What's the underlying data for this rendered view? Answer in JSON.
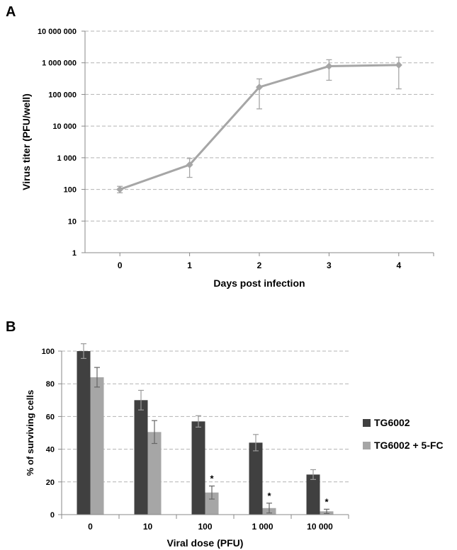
{
  "panels": {
    "a_label": "A",
    "b_label": "B"
  },
  "chart_data": [
    {
      "type": "line",
      "panel": "A",
      "xlabel": "Days post infection",
      "ylabel": "Virus titer  (PFU/well)",
      "yscale": "log",
      "ylim": [
        1,
        10000000
      ],
      "xlim": [
        -0.5,
        4.5
      ],
      "grid": true,
      "x_ticks": [
        0,
        1,
        2,
        3,
        4
      ],
      "x_tick_labels": [
        "0",
        "1",
        "2",
        "3",
        "4"
      ],
      "y_ticks": [
        1,
        10,
        100,
        1000,
        10000,
        100000,
        1000000,
        10000000
      ],
      "y_tick_labels": [
        "1",
        "10",
        "100",
        "1 000",
        "10 000",
        "100 000",
        "1 000 000",
        "10 000 000"
      ],
      "color": "#a6a6a6",
      "series": [
        {
          "x": [
            0,
            1,
            2,
            3,
            4
          ],
          "y": [
            100,
            600,
            170000,
            780000,
            850000
          ],
          "err_low": [
            78,
            240,
            35000,
            280000,
            150000
          ],
          "err_high": [
            125,
            950,
            310000,
            1250000,
            1500000
          ]
        }
      ]
    },
    {
      "type": "bar",
      "panel": "B",
      "xlabel": "Viral dose (PFU)",
      "ylabel": "% of surviving cells",
      "ylim": [
        0,
        100
      ],
      "grid": true,
      "legend_position": "right",
      "categories": [
        "0",
        "10",
        "100",
        "1 000",
        "10 000"
      ],
      "y_ticks": [
        0,
        20,
        40,
        60,
        80,
        100
      ],
      "series": [
        {
          "name": "TG6002",
          "color": "#404040",
          "values": [
            100,
            70,
            57,
            44,
            24.5
          ],
          "errors": [
            4.5,
            6,
            3.5,
            5,
            3
          ],
          "annotations": [
            "",
            "",
            "",
            "",
            ""
          ]
        },
        {
          "name": "TG6002 + 5-FC",
          "color": "#a6a6a6",
          "values": [
            84,
            50.5,
            13.5,
            4,
            2
          ],
          "errors": [
            6,
            7,
            4,
            3,
            1.3
          ],
          "annotations": [
            "",
            "",
            "*",
            "*",
            "*"
          ]
        }
      ]
    }
  ]
}
